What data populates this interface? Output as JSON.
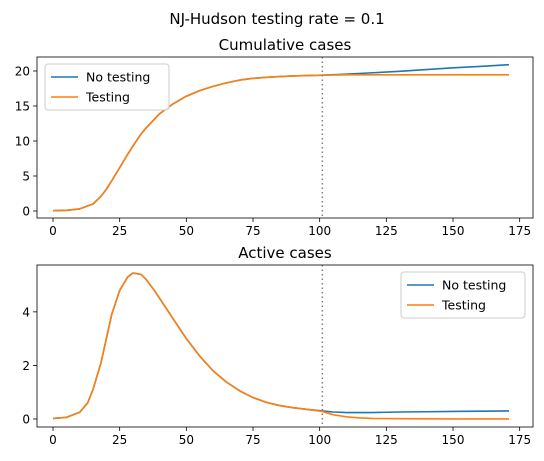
{
  "suptitle": "NJ-Hudson testing rate = 0.1",
  "colors": {
    "no_testing": "#1f77b4",
    "testing": "#ff7f0e",
    "vline": "#808080"
  },
  "chart_data": [
    {
      "type": "line",
      "title": "Cumulative cases",
      "xlabel": "",
      "ylabel": "",
      "xlim": [
        -6,
        180
      ],
      "ylim": [
        -1,
        22
      ],
      "xticks": [
        0,
        25,
        50,
        75,
        100,
        125,
        150,
        175
      ],
      "yticks": [
        0,
        5,
        10,
        15,
        20
      ],
      "vline_x": 101,
      "legend_position": "upper-left",
      "grid": false,
      "series": [
        {
          "name": "No testing",
          "color": "#1f77b4",
          "x": [
            0,
            5,
            10,
            15,
            18,
            20,
            22,
            25,
            28,
            30,
            33,
            35,
            40,
            45,
            50,
            55,
            60,
            65,
            70,
            75,
            80,
            85,
            90,
            95,
            101,
            110,
            120,
            130,
            140,
            150,
            160,
            171
          ],
          "y": [
            0.05,
            0.1,
            0.3,
            1.0,
            2.1,
            3.1,
            4.3,
            6.2,
            8.1,
            9.3,
            11.0,
            11.9,
            13.9,
            15.3,
            16.4,
            17.2,
            17.8,
            18.3,
            18.7,
            18.95,
            19.1,
            19.2,
            19.3,
            19.35,
            19.4,
            19.55,
            19.75,
            19.95,
            20.2,
            20.45,
            20.65,
            20.9
          ]
        },
        {
          "name": "Testing",
          "color": "#ff7f0e",
          "x": [
            0,
            5,
            10,
            15,
            18,
            20,
            22,
            25,
            28,
            30,
            33,
            35,
            40,
            45,
            50,
            55,
            60,
            65,
            70,
            75,
            80,
            85,
            90,
            95,
            101,
            110,
            120,
            130,
            140,
            150,
            160,
            171
          ],
          "y": [
            0.05,
            0.1,
            0.3,
            1.0,
            2.1,
            3.1,
            4.3,
            6.2,
            8.1,
            9.3,
            11.0,
            11.9,
            13.9,
            15.3,
            16.4,
            17.2,
            17.8,
            18.3,
            18.7,
            18.95,
            19.1,
            19.2,
            19.3,
            19.35,
            19.4,
            19.45,
            19.45,
            19.45,
            19.45,
            19.45,
            19.45,
            19.45
          ]
        }
      ]
    },
    {
      "type": "line",
      "title": "Active cases",
      "xlabel": "",
      "ylabel": "",
      "xlim": [
        -6,
        180
      ],
      "ylim": [
        -0.3,
        5.75
      ],
      "xticks": [
        0,
        25,
        50,
        75,
        100,
        125,
        150,
        175
      ],
      "yticks": [
        0,
        2,
        4
      ],
      "vline_x": 101,
      "legend_position": "upper-right",
      "grid": false,
      "series": [
        {
          "name": "No testing",
          "color": "#1f77b4",
          "x": [
            0,
            5,
            10,
            13,
            15,
            18,
            20,
            22,
            25,
            28,
            30,
            33,
            35,
            38,
            40,
            45,
            50,
            55,
            60,
            65,
            70,
            75,
            80,
            85,
            90,
            95,
            101,
            105,
            110,
            120,
            130,
            140,
            150,
            160,
            171
          ],
          "y": [
            0.02,
            0.06,
            0.25,
            0.6,
            1.1,
            2.1,
            3.0,
            3.9,
            4.8,
            5.3,
            5.45,
            5.4,
            5.2,
            4.8,
            4.5,
            3.75,
            3.0,
            2.35,
            1.8,
            1.38,
            1.05,
            0.8,
            0.62,
            0.5,
            0.42,
            0.36,
            0.3,
            0.26,
            0.24,
            0.24,
            0.26,
            0.27,
            0.28,
            0.29,
            0.3
          ]
        },
        {
          "name": "Testing",
          "color": "#ff7f0e",
          "x": [
            0,
            5,
            10,
            13,
            15,
            18,
            20,
            22,
            25,
            28,
            30,
            33,
            35,
            38,
            40,
            45,
            50,
            55,
            60,
            65,
            70,
            75,
            80,
            85,
            90,
            95,
            101,
            105,
            110,
            115,
            120,
            130,
            140,
            150,
            160,
            171
          ],
          "y": [
            0.02,
            0.06,
            0.25,
            0.6,
            1.1,
            2.1,
            3.0,
            3.9,
            4.8,
            5.3,
            5.45,
            5.4,
            5.2,
            4.8,
            4.5,
            3.75,
            3.0,
            2.35,
            1.8,
            1.38,
            1.05,
            0.8,
            0.62,
            0.5,
            0.42,
            0.36,
            0.28,
            0.16,
            0.08,
            0.04,
            0.02,
            0.01,
            0.005,
            0.003,
            0.002,
            0.002
          ]
        }
      ]
    }
  ]
}
